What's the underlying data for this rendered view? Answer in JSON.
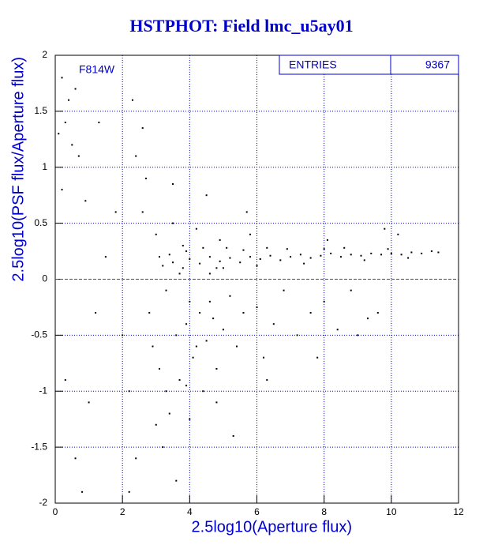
{
  "chart_data": {
    "type": "scatter",
    "title": "HSTPHOT: Field lmc_u5ay01",
    "annotation": "F814W",
    "stats": {
      "label": "ENTRIES",
      "value": 9367
    },
    "x_label": "2.5log10(Aperture flux)",
    "y_label": "2.5log10(PSF flux/Aperture flux)",
    "xlim": [
      0,
      12
    ],
    "ylim": [
      -2,
      2
    ],
    "xticks": [
      0,
      2,
      4,
      6,
      8,
      10,
      12
    ],
    "yticks": [
      -2,
      -1.5,
      -1,
      -0.5,
      0,
      0.5,
      1,
      1.5,
      2
    ],
    "grid": true,
    "grid_color": "#0000cc",
    "reference_line": {
      "value": 0,
      "color": "#ff0000"
    },
    "color": "#000000",
    "x": [
      3.2,
      3.5,
      3.8,
      4.0,
      4.3,
      4.6,
      4.9,
      5.2,
      5.5,
      5.8,
      6.1,
      6.4,
      6.7,
      7.0,
      7.3,
      7.6,
      7.9,
      8.2,
      8.5,
      8.8,
      9.1,
      9.4,
      9.7,
      10.0,
      10.3,
      10.6,
      10.9,
      11.2,
      3.4,
      3.9,
      4.4,
      4.8,
      5.1,
      5.6,
      6.0,
      6.3,
      6.9,
      7.4,
      8.0,
      8.6,
      9.2,
      9.9,
      10.5,
      11.4,
      2.6,
      2.8,
      3.0,
      3.1,
      3.3,
      3.4,
      3.5,
      3.6,
      3.7,
      3.8,
      3.9,
      4.0,
      4.1,
      4.2,
      4.3,
      4.4,
      4.5,
      4.6,
      4.7,
      4.8,
      4.9,
      5.0,
      5.2,
      5.4,
      5.6,
      5.8,
      6.0,
      6.2,
      6.5,
      6.8,
      7.2,
      7.6,
      8.0,
      8.4,
      8.8,
      9.3,
      9.6,
      10.2,
      3.2,
      3.6,
      3.0,
      2.4,
      2.2,
      2.0,
      1.8,
      1.5,
      1.2,
      1.0,
      0.8,
      0.6,
      0.3,
      0.2,
      0.5,
      0.7,
      0.3,
      0.1,
      0.4,
      0.6,
      0.2,
      0.9,
      1.3,
      2.3,
      2.6,
      2.4,
      2.2,
      4.8,
      5.3,
      6.3,
      7.8,
      9.0,
      8.1,
      9.8,
      5.7,
      4.5,
      3.5,
      2.7,
      3.3,
      4.0,
      3.9,
      4.2,
      2.9,
      3.1,
      3.7,
      4.6,
      5.0
    ],
    "values": [
      0.12,
      0.15,
      0.1,
      0.18,
      0.14,
      0.2,
      0.16,
      0.19,
      0.15,
      0.2,
      0.18,
      0.21,
      0.17,
      0.2,
      0.22,
      0.19,
      0.21,
      0.23,
      0.2,
      0.22,
      0.21,
      0.23,
      0.22,
      0.23,
      0.22,
      0.24,
      0.23,
      0.25,
      0.22,
      0.25,
      0.28,
      0.1,
      0.28,
      0.26,
      0.12,
      0.28,
      0.27,
      0.14,
      0.27,
      0.28,
      0.17,
      0.27,
      0.19,
      0.24,
      0.6,
      -0.3,
      0.4,
      -0.8,
      -0.1,
      -1.2,
      0.5,
      -0.5,
      -0.9,
      0.3,
      -0.4,
      -0.2,
      -0.7,
      0.45,
      -0.3,
      -1.0,
      -0.55,
      0.05,
      -0.35,
      -0.8,
      0.35,
      -0.45,
      -0.15,
      -0.6,
      -0.3,
      0.4,
      -0.25,
      -0.7,
      -0.4,
      -0.1,
      -0.5,
      -0.3,
      -0.2,
      -0.45,
      -0.1,
      -0.35,
      -0.3,
      0.4,
      -1.5,
      -1.8,
      -1.3,
      -1.6,
      -1.0,
      -0.5,
      0.6,
      0.2,
      -0.3,
      -1.1,
      -1.9,
      -1.6,
      -0.9,
      0.8,
      1.2,
      1.1,
      1.4,
      1.3,
      1.6,
      1.7,
      1.8,
      0.7,
      1.4,
      1.6,
      1.35,
      1.1,
      -1.9,
      -1.1,
      -1.4,
      -0.9,
      -0.7,
      -0.5,
      0.35,
      0.45,
      0.6,
      0.75,
      0.85,
      0.9,
      -1.0,
      -1.25,
      -0.95,
      -0.6,
      -0.6,
      0.2,
      0.05,
      -0.2,
      0.1
    ]
  }
}
